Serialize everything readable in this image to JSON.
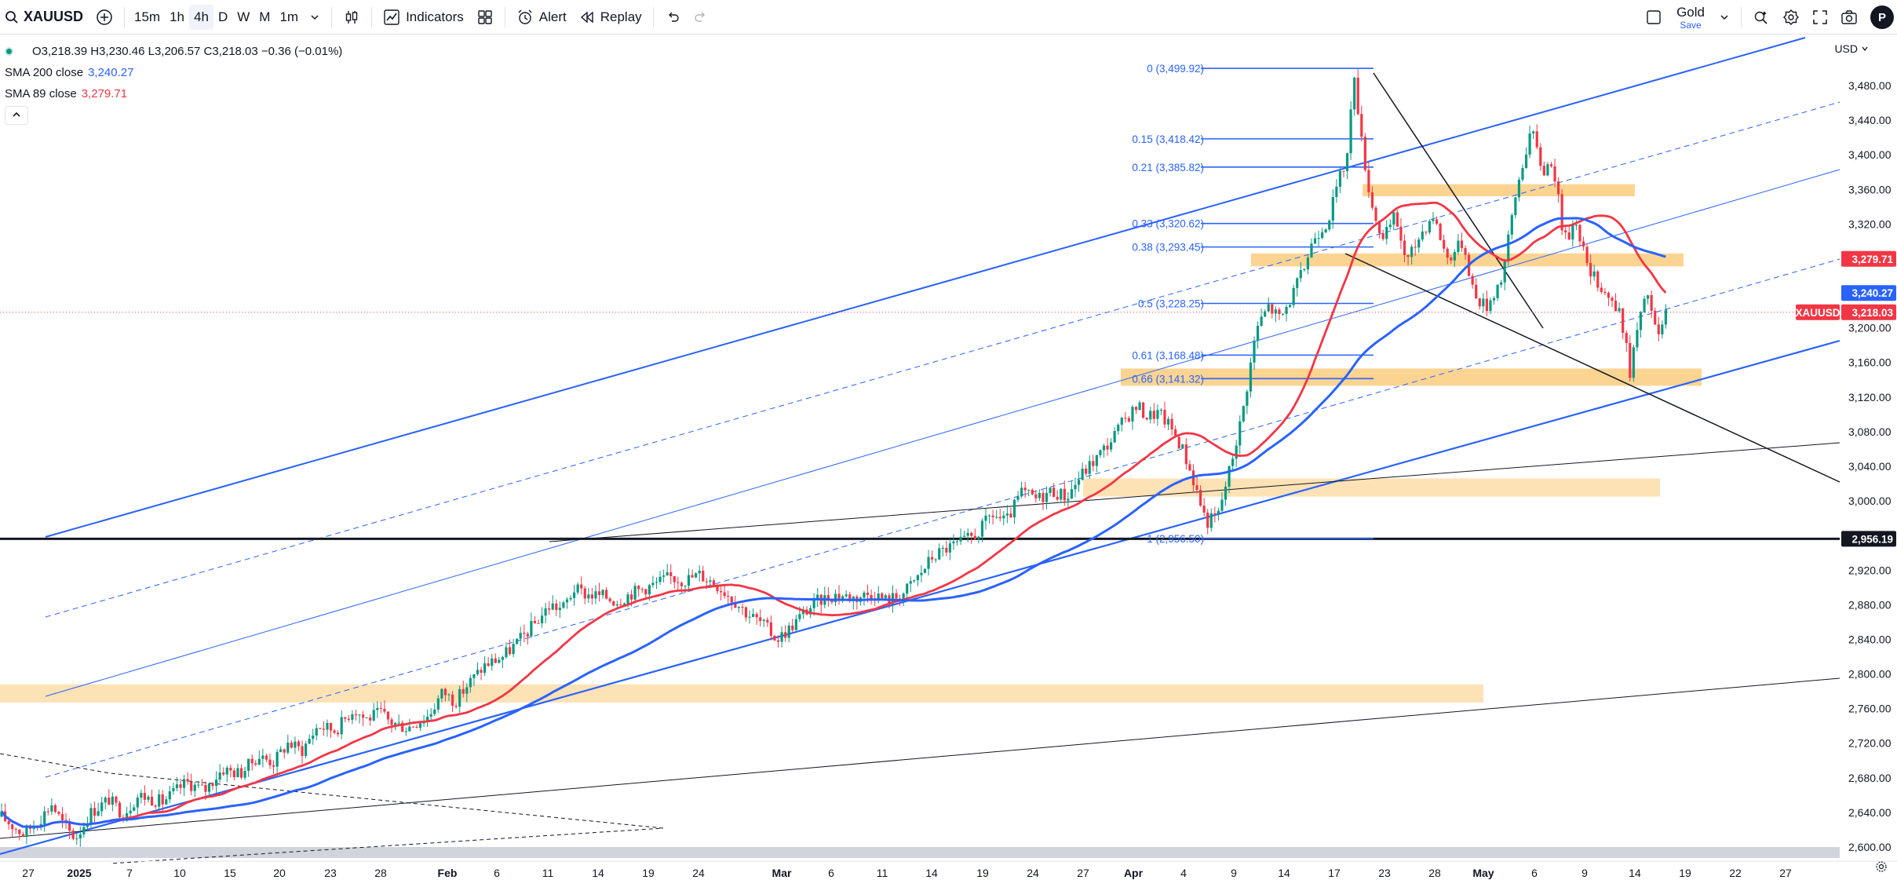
{
  "toolbar": {
    "symbol": "XAUUSD",
    "timeframes": [
      "15m",
      "1h",
      "4h",
      "D",
      "W",
      "M",
      "1m"
    ],
    "active_timeframe": "4h",
    "indicators_label": "Indicators",
    "alert_label": "Alert",
    "replay_label": "Replay",
    "layout_name": "Gold",
    "layout_sub": "Save",
    "avatar_letter": "P"
  },
  "legend": {
    "ohlc": "O3,218.39 H3,230.46 L3,206.57 C3,218.03 −0.36 (−0.01%)",
    "sma200_name": "SMA 200 close",
    "sma200_value": "3,240.27",
    "sma89_name": "SMA 89 close",
    "sma89_value": "3,279.71"
  },
  "currency": "USD",
  "colors": {
    "up": "#089981",
    "down": "#f23645",
    "sma200": "#2962ff",
    "sma89": "#f23645",
    "fib": "#2962ff",
    "zone": "#fbc56e"
  },
  "chart_data": {
    "type": "candlestick",
    "symbol": "XAUUSD",
    "interval": "4h",
    "ylim": [
      2590,
      3515
    ],
    "price_ticks": [
      "3,480.00",
      "3,440.00",
      "3,400.00",
      "3,360.00",
      "3,320.00",
      "3,280.00",
      "3,240.00",
      "3,200.00",
      "3,160.00",
      "3,120.00",
      "3,080.00",
      "3,040.00",
      "3,000.00",
      "2,960.00",
      "2,920.00",
      "2,880.00",
      "2,840.00",
      "2,800.00",
      "2,760.00",
      "2,720.00",
      "2,680.00",
      "2,640.00",
      "2,600.00"
    ],
    "time_ticks": [
      "27",
      "2025",
      "7",
      "10",
      "15",
      "20",
      "23",
      "28",
      "Feb",
      "6",
      "11",
      "14",
      "19",
      "24",
      "Mar",
      "6",
      "11",
      "14",
      "19",
      "24",
      "27",
      "Apr",
      "4",
      "9",
      "14",
      "17",
      "23",
      "28",
      "May",
      "6",
      "9",
      "14",
      "19",
      "22",
      "27"
    ],
    "price_tags": [
      {
        "text": "3,279.71",
        "value": 3279.71,
        "color": "#f23645"
      },
      {
        "text": "3,240.27",
        "value": 3240.27,
        "color": "#2962ff"
      },
      {
        "text": "3,218.03",
        "value": 3218.03,
        "color": "#f23645",
        "symbol": "XAUUSD"
      },
      {
        "text": "2,956.19",
        "value": 2956.19,
        "color": "#131722"
      }
    ],
    "fib_levels": [
      {
        "text": "0 (3,499.92)",
        "value": 3499.92
      },
      {
        "text": "0.15 (3,418.42)",
        "value": 3418.42
      },
      {
        "text": "0.21 (3,385.82)",
        "value": 3385.82
      },
      {
        "text": "0.33 (3,320.62)",
        "value": 3320.62
      },
      {
        "text": "0.38 (3,293.45)",
        "value": 3293.45
      },
      {
        "text": "0.5 (3,228.25)",
        "value": 3228.25
      },
      {
        "text": "0.61 (3,168.48)",
        "value": 3168.48
      },
      {
        "text": "0.66 (3,141.32)",
        "value": 3141.32
      },
      {
        "text": "1 (2,956.50)",
        "value": 2956.5
      }
    ],
    "zones": [
      {
        "from": 3352,
        "to": 3366
      },
      {
        "from": 3271,
        "to": 3286
      },
      {
        "from": 3133,
        "to": 3153
      },
      {
        "from": 3005,
        "to": 3026
      },
      {
        "from": 2767,
        "to": 2788
      }
    ],
    "horizontal_line": 2956.19,
    "last_close": 3218.03,
    "path": [
      [
        0,
        2635
      ],
      [
        18,
        2615
      ],
      [
        32,
        2632
      ],
      [
        42,
        2650
      ],
      [
        52,
        2625
      ],
      [
        62,
        2610
      ],
      [
        75,
        2640
      ],
      [
        90,
        2655
      ],
      [
        102,
        2638
      ],
      [
        115,
        2660
      ],
      [
        135,
        2652
      ],
      [
        155,
        2675
      ],
      [
        170,
        2665
      ],
      [
        185,
        2690
      ],
      [
        200,
        2685
      ],
      [
        215,
        2705
      ],
      [
        228,
        2698
      ],
      [
        240,
        2720
      ],
      [
        252,
        2712
      ],
      [
        265,
        2740
      ],
      [
        280,
        2735
      ],
      [
        295,
        2760
      ],
      [
        305,
        2748
      ],
      [
        318,
        2755
      ],
      [
        325,
        2745
      ],
      [
        340,
        2738
      ],
      [
        358,
        2752
      ],
      [
        370,
        2780
      ],
      [
        380,
        2768
      ],
      [
        392,
        2790
      ],
      [
        405,
        2810
      ],
      [
        420,
        2820
      ],
      [
        435,
        2840
      ],
      [
        448,
        2860
      ],
      [
        460,
        2880
      ],
      [
        470,
        2875
      ],
      [
        480,
        2898
      ],
      [
        490,
        2892
      ],
      [
        505,
        2890
      ],
      [
        515,
        2884
      ],
      [
        530,
        2895
      ],
      [
        545,
        2902
      ],
      [
        560,
        2912
      ],
      [
        572,
        2908
      ],
      [
        585,
        2915
      ],
      [
        598,
        2905
      ],
      [
        612,
        2888
      ],
      [
        625,
        2870
      ],
      [
        638,
        2858
      ],
      [
        650,
        2840
      ],
      [
        660,
        2852
      ],
      [
        672,
        2870
      ],
      [
        685,
        2885
      ],
      [
        700,
        2892
      ],
      [
        715,
        2888
      ],
      [
        730,
        2894
      ],
      [
        742,
        2885
      ],
      [
        755,
        2892
      ],
      [
        768,
        2912
      ],
      [
        780,
        2935
      ],
      [
        792,
        2945
      ],
      [
        805,
        2952
      ],
      [
        818,
        2962
      ],
      [
        830,
        2985
      ],
      [
        842,
        2975
      ],
      [
        855,
        3010
      ],
      [
        868,
        3002
      ],
      [
        880,
        3012
      ],
      [
        893,
        3005
      ],
      [
        905,
        3030
      ],
      [
        918,
        3050
      ],
      [
        930,
        3070
      ],
      [
        942,
        3095
      ],
      [
        952,
        3110
      ],
      [
        960,
        3098
      ],
      [
        970,
        3102
      ],
      [
        980,
        3085
      ],
      [
        990,
        3060
      ],
      [
        1000,
        3020
      ],
      [
        1010,
        2975
      ],
      [
        1020,
        2985
      ],
      [
        1030,
        3040
      ],
      [
        1040,
        3100
      ],
      [
        1052,
        3200
      ],
      [
        1062,
        3225
      ],
      [
        1072,
        3210
      ],
      [
        1080,
        3232
      ],
      [
        1090,
        3262
      ],
      [
        1100,
        3305
      ],
      [
        1112,
        3325
      ],
      [
        1120,
        3365
      ],
      [
        1128,
        3400
      ],
      [
        1134,
        3495
      ],
      [
        1140,
        3415
      ],
      [
        1148,
        3345
      ],
      [
        1158,
        3300
      ],
      [
        1168,
        3330
      ],
      [
        1178,
        3275
      ],
      [
        1190,
        3310
      ],
      [
        1200,
        3330
      ],
      [
        1212,
        3280
      ],
      [
        1225,
        3300
      ],
      [
        1235,
        3235
      ],
      [
        1245,
        3225
      ],
      [
        1258,
        3260
      ],
      [
        1270,
        3360
      ],
      [
        1282,
        3430
      ],
      [
        1292,
        3380
      ],
      [
        1300,
        3395
      ],
      [
        1310,
        3300
      ],
      [
        1320,
        3325
      ],
      [
        1330,
        3265
      ],
      [
        1340,
        3250
      ],
      [
        1350,
        3230
      ],
      [
        1358,
        3210
      ],
      [
        1365,
        3150
      ],
      [
        1372,
        3205
      ],
      [
        1380,
        3240
      ],
      [
        1388,
        3185
      ],
      [
        1395,
        3218
      ]
    ]
  }
}
